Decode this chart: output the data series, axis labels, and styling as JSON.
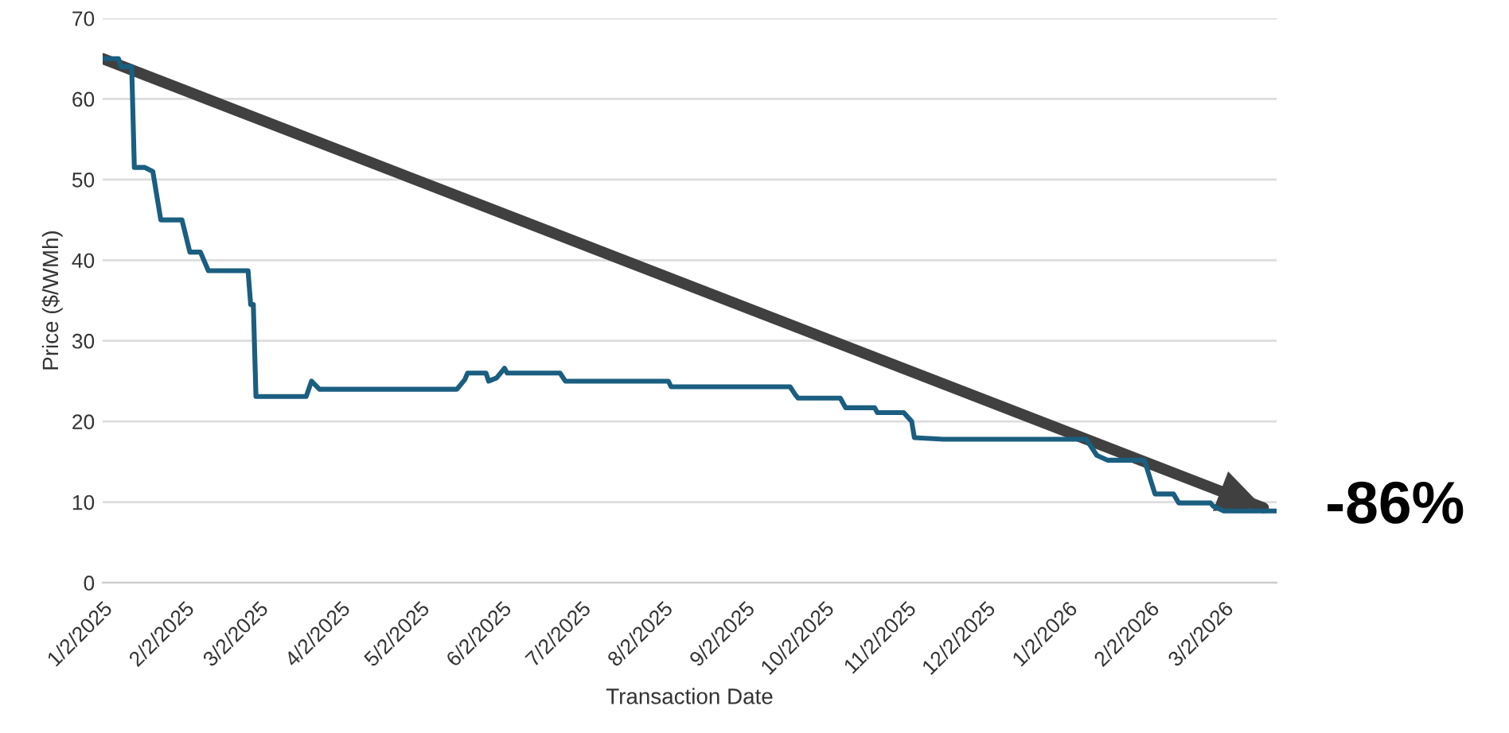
{
  "chart_data": {
    "type": "line",
    "xlabel": "Transaction Date",
    "ylabel": "Price ($/WMh)",
    "x": [
      "2025-01-02",
      "2025-01-08",
      "2025-01-09",
      "2025-01-13",
      "2025-01-14",
      "2025-01-18",
      "2025-01-21",
      "2025-01-23",
      "2025-01-24",
      "2025-02-01",
      "2025-02-04",
      "2025-02-08",
      "2025-02-11",
      "2025-02-26",
      "2025-02-27",
      "2025-02-28",
      "2025-03-01",
      "2025-03-20",
      "2025-03-22",
      "2025-03-25",
      "2025-05-16",
      "2025-05-19",
      "2025-05-20",
      "2025-05-27",
      "2025-05-28",
      "2025-05-31",
      "2025-06-03",
      "2025-06-04",
      "2025-06-24",
      "2025-06-26",
      "2025-08-04",
      "2025-08-05",
      "2025-09-19",
      "2025-09-21",
      "2025-09-22",
      "2025-10-08",
      "2025-10-10",
      "2025-10-21",
      "2025-10-22",
      "2025-11-01",
      "2025-11-04",
      "2025-11-05",
      "2025-11-16",
      "2026-01-09",
      "2026-01-13",
      "2026-01-17",
      "2026-01-31",
      "2026-02-04",
      "2026-02-11",
      "2026-02-13",
      "2026-02-25",
      "2026-02-26",
      "2026-03-02",
      "2026-03-22"
    ],
    "series": [
      {
        "color": "#1a5e80",
        "values": [
          65,
          65,
          64,
          64,
          51.5,
          51.5,
          51,
          47,
          45,
          45,
          41,
          41,
          38.7,
          38.7,
          34.5,
          34.5,
          23.1,
          23.1,
          25,
          24,
          24,
          25.2,
          26,
          26,
          25,
          25.4,
          26.6,
          26,
          26,
          25,
          25,
          24.3,
          24.3,
          23.3,
          22.9,
          22.9,
          21.7,
          21.7,
          21.1,
          21.1,
          20,
          18,
          17.8,
          17.8,
          15.8,
          15.2,
          15.2,
          11,
          11,
          9.9,
          9.9,
          9.5,
          8.9,
          8.9
        ]
      },
      {
        "type": "line",
        "color": "#404040",
        "x": [
          "2025-01-02",
          "2026-03-17"
        ],
        "values": [
          65,
          9.3
        ]
      }
    ],
    "xlim": [
      "2025-01-02",
      "2026-03-22"
    ],
    "xticks": [
      {
        "value": "2025-01-02",
        "label": "1/2/2025"
      },
      {
        "value": "2025-02-02",
        "label": "2/2/2025"
      },
      {
        "value": "2025-03-02",
        "label": "3/2/2025"
      },
      {
        "value": "2025-04-02",
        "label": "4/2/2025"
      },
      {
        "value": "2025-05-02",
        "label": "5/2/2025"
      },
      {
        "value": "2025-06-02",
        "label": "6/2/2025"
      },
      {
        "value": "2025-07-02",
        "label": "7/2/2025"
      },
      {
        "value": "2025-08-02",
        "label": "8/2/2025"
      },
      {
        "value": "2025-09-02",
        "label": "9/2/2025"
      },
      {
        "value": "2025-10-02",
        "label": "10/2/2025"
      },
      {
        "value": "2025-11-02",
        "label": "11/2/2025"
      },
      {
        "value": "2025-12-02",
        "label": "12/2/2025"
      },
      {
        "value": "2026-01-02",
        "label": "1/2/2026"
      },
      {
        "value": "2026-02-02",
        "label": "2/2/2026"
      },
      {
        "value": "2026-03-02",
        "label": "3/2/2026"
      }
    ],
    "ylim": [
      0,
      70
    ],
    "yticks": [
      0,
      10,
      20,
      30,
      40,
      50,
      60,
      70
    ],
    "grid": "y",
    "annotations": [
      {
        "text": "-86%",
        "x": "2026-03-17",
        "y": 9.3
      }
    ]
  }
}
